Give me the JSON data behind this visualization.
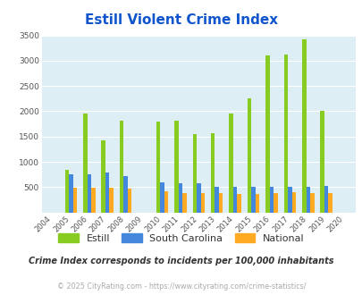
{
  "title": "Estill Violent Crime Index",
  "years": [
    2004,
    2005,
    2006,
    2007,
    2008,
    2009,
    2010,
    2011,
    2012,
    2013,
    2014,
    2015,
    2016,
    2017,
    2018,
    2019,
    2020
  ],
  "estill": [
    0,
    850,
    1950,
    1430,
    1810,
    0,
    1790,
    1810,
    1540,
    1560,
    1960,
    2250,
    3100,
    3120,
    3420,
    2010,
    0
  ],
  "south_carolina": [
    0,
    760,
    760,
    780,
    720,
    0,
    600,
    575,
    570,
    510,
    510,
    510,
    510,
    510,
    510,
    530,
    0
  ],
  "national": [
    0,
    490,
    490,
    490,
    470,
    0,
    420,
    390,
    390,
    380,
    370,
    370,
    380,
    400,
    390,
    380,
    0
  ],
  "estill_color": "#88cc22",
  "sc_color": "#4488dd",
  "national_color": "#ffaa22",
  "bg_color": "#ddeef4",
  "title_color": "#1155cc",
  "subtitle_text": "Crime Index corresponds to incidents per 100,000 inhabitants",
  "footer_text": "© 2025 CityRating.com - https://www.cityrating.com/crime-statistics/",
  "ylim": [
    0,
    3500
  ],
  "yticks": [
    0,
    500,
    1000,
    1500,
    2000,
    2500,
    3000,
    3500
  ]
}
